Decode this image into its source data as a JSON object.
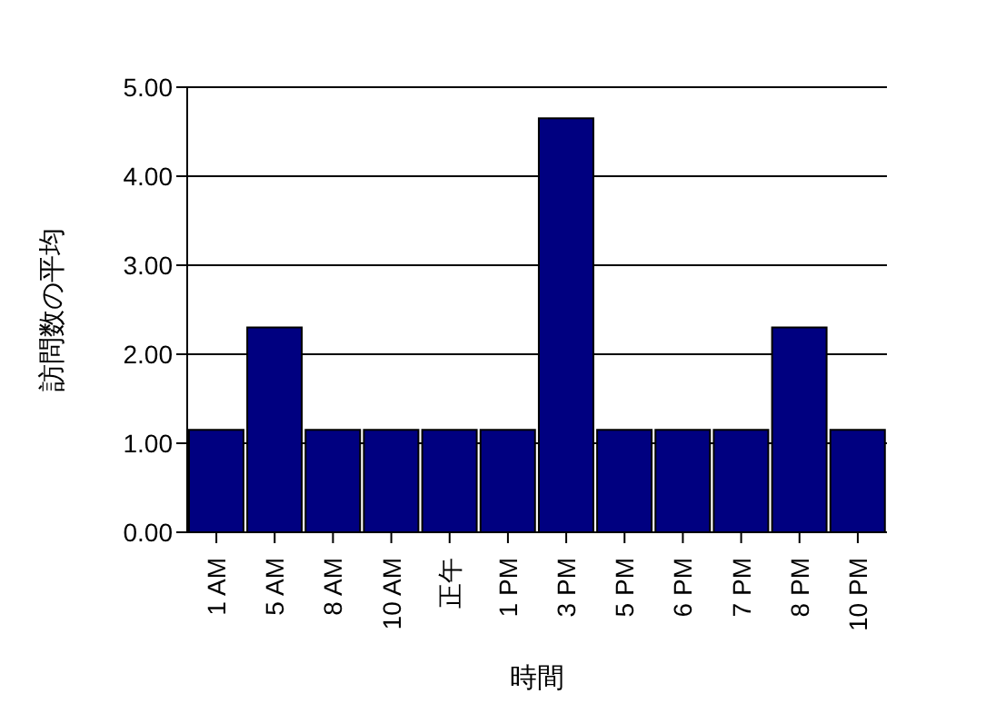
{
  "chart_data": {
    "type": "bar",
    "xlabel": "時間",
    "ylabel": "訪問数の平均",
    "categories": [
      "1 AM",
      "5 AM",
      "8 AM",
      "10 AM",
      "正午",
      "1 PM",
      "3 PM",
      "5 PM",
      "6 PM",
      "7 PM",
      "8 PM",
      "10 PM"
    ],
    "values": [
      1.15,
      2.3,
      1.15,
      1.15,
      1.15,
      1.15,
      4.65,
      1.15,
      1.15,
      1.15,
      2.3,
      1.15
    ],
    "color": "#000080",
    "ylim": [
      0,
      5
    ],
    "yticks": [
      {
        "value": 0,
        "label": "0.00"
      },
      {
        "value": 1,
        "label": "1.00"
      },
      {
        "value": 2,
        "label": "2.00"
      },
      {
        "value": 3,
        "label": "3.00"
      },
      {
        "value": 4,
        "label": "4.00"
      },
      {
        "value": 5,
        "label": "5.00"
      }
    ],
    "grid": "y"
  }
}
